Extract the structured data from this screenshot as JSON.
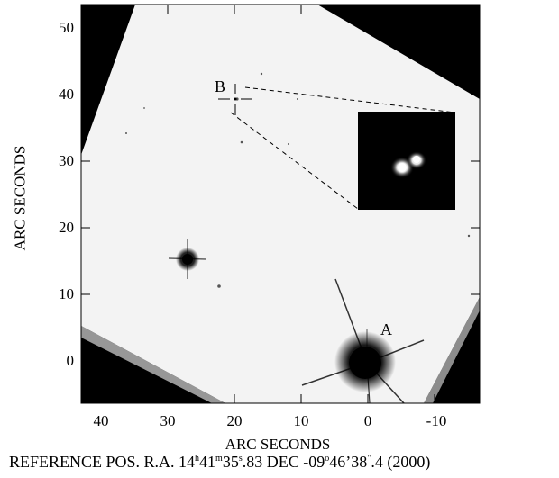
{
  "figure": {
    "x_axis": {
      "label": "ARC SECONDS",
      "ticks": [
        "40",
        "30",
        "20",
        "10",
        "0",
        "-10"
      ],
      "range": [
        43,
        -17
      ]
    },
    "y_axis": {
      "label": "ARC SECONDS",
      "ticks": [
        "50",
        "40",
        "30",
        "20",
        "10",
        "0"
      ],
      "range": [
        -6,
        54
      ]
    },
    "labels": {
      "a": "A",
      "b": "B"
    },
    "caption": {
      "prefix": "REFERENCE POS.  R.A. 14",
      "h": "h",
      "ra_min": "41",
      "m": "m",
      "ra_sec_int": "35",
      "s": "s",
      "ra_sec_frac": ".83  DEC  -09",
      "deg": "o",
      "dec_rest": "46’38",
      "arcsec": "\"",
      "dec_frac": ".4  (2000)"
    },
    "colors": {
      "sky": "#f3f3f3",
      "background": "#000000",
      "star": "#000000"
    }
  }
}
